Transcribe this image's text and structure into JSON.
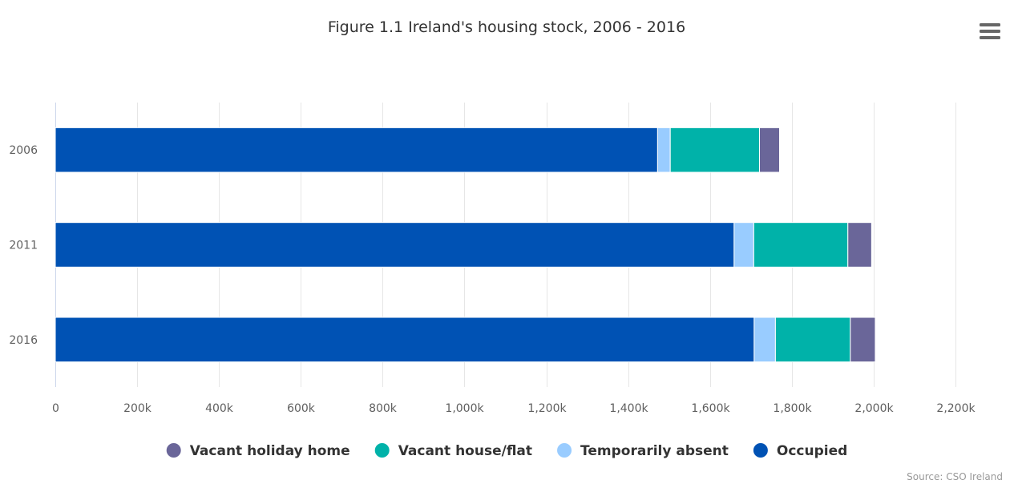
{
  "chart_data": {
    "type": "bar",
    "orientation": "horizontal",
    "stacked": true,
    "title": "Figure 1.1 Ireland's housing stock, 2006 - 2016",
    "categories": [
      "2006",
      "2011",
      "2016"
    ],
    "series": [
      {
        "name": "Occupied",
        "color": "#0052b4",
        "values": [
          1472000,
          1659000,
          1708000
        ]
      },
      {
        "name": "Temporarily absent",
        "color": "#99ccff",
        "values": [
          31000,
          48000,
          52000
        ]
      },
      {
        "name": "Vacant house/flat",
        "color": "#00b2a9",
        "values": [
          218000,
          230000,
          183000
        ]
      },
      {
        "name": "Vacant holiday home",
        "color": "#6a6699",
        "values": [
          49000,
          58000,
          61000
        ]
      }
    ],
    "xaxis": {
      "min": 0,
      "max": 2200000,
      "tick_labels": [
        "0",
        "200k",
        "400k",
        "600k",
        "800k",
        "1,000k",
        "1,200k",
        "1,400k",
        "1,600k",
        "1,800k",
        "2,000k",
        "2,200k"
      ]
    },
    "grid": true,
    "legend": {
      "placement": "bottom-center",
      "order": [
        "Vacant holiday home",
        "Vacant house/flat",
        "Temporarily absent",
        "Occupied"
      ]
    },
    "credit": "Source: CSO Ireland"
  },
  "ui": {
    "menu_icon": "hamburger-menu-icon"
  }
}
